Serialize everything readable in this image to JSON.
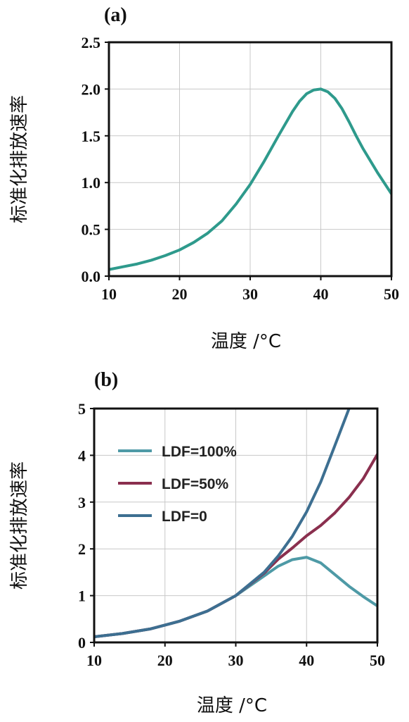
{
  "chart_data": [
    {
      "panel": "(a)",
      "type": "line",
      "xlabel": "温度 /°C",
      "ylabel": "标准化排放速率",
      "xlim": [
        10,
        50
      ],
      "ylim": [
        0,
        2.5
      ],
      "xticks": [
        "10",
        "20",
        "30",
        "40",
        "50"
      ],
      "yticks": [
        "0.0",
        "0.5",
        "1.0",
        "1.5",
        "2.0",
        "2.5"
      ],
      "grid": true,
      "series": [
        {
          "color": "#2e9a8c",
          "x": [
            10,
            12,
            14,
            16,
            18,
            20,
            22,
            24,
            26,
            28,
            30,
            32,
            34,
            36,
            37,
            38,
            39,
            40,
            41,
            42,
            43,
            44,
            45,
            46,
            48,
            50
          ],
          "y": [
            0.07,
            0.1,
            0.13,
            0.17,
            0.22,
            0.28,
            0.36,
            0.46,
            0.59,
            0.77,
            0.98,
            1.23,
            1.5,
            1.76,
            1.87,
            1.95,
            1.99,
            2.0,
            1.97,
            1.9,
            1.79,
            1.65,
            1.5,
            1.36,
            1.11,
            0.88
          ]
        }
      ]
    },
    {
      "panel": "(b)",
      "type": "line",
      "xlabel": "温度 /°C",
      "ylabel": "标准化排放速率",
      "xlim": [
        10,
        50
      ],
      "ylim": [
        0,
        5
      ],
      "xticks": [
        "10",
        "20",
        "30",
        "40",
        "50"
      ],
      "yticks": [
        "0",
        "1",
        "2",
        "3",
        "4",
        "5"
      ],
      "grid": true,
      "legend_position": "top-left",
      "series": [
        {
          "name": "LDF=100%",
          "color": "#4e9aa6",
          "x": [
            10,
            14,
            18,
            22,
            26,
            30,
            34,
            36,
            38,
            40,
            42,
            44,
            46,
            48,
            50
          ],
          "y": [
            0.12,
            0.19,
            0.29,
            0.45,
            0.67,
            1.0,
            1.42,
            1.63,
            1.77,
            1.82,
            1.7,
            1.45,
            1.2,
            0.98,
            0.78
          ]
        },
        {
          "name": "LDF=50%",
          "color": "#8a2f4e",
          "x": [
            10,
            14,
            18,
            22,
            26,
            30,
            34,
            36,
            38,
            40,
            42,
            44,
            46,
            48,
            50
          ],
          "y": [
            0.12,
            0.19,
            0.29,
            0.45,
            0.67,
            1.0,
            1.48,
            1.78,
            2.02,
            2.28,
            2.5,
            2.77,
            3.1,
            3.5,
            4.02
          ]
        },
        {
          "name": "LDF=0",
          "color": "#3d6f91",
          "x": [
            10,
            14,
            18,
            22,
            26,
            30,
            34,
            36,
            38,
            40,
            42,
            44,
            46
          ],
          "y": [
            0.12,
            0.19,
            0.29,
            0.45,
            0.67,
            1.0,
            1.5,
            1.85,
            2.27,
            2.79,
            3.43,
            4.21,
            5.0
          ]
        }
      ]
    }
  ]
}
